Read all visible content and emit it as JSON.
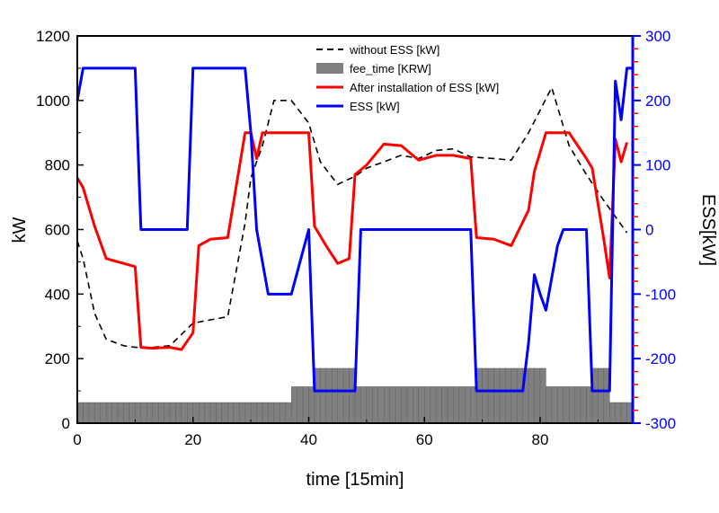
{
  "chart_data": {
    "type": "line",
    "xlabel": "time [15min]",
    "ylabel": "kW",
    "y2label": "ESS[kW]",
    "xlim": [
      0,
      96
    ],
    "ylim": [
      0,
      1200
    ],
    "y2lim": [
      -300,
      300
    ],
    "x_ticks": [
      "0",
      "20",
      "40",
      "60",
      "80"
    ],
    "y_ticks": [
      "0",
      "200",
      "400",
      "600",
      "800",
      "1000",
      "1200"
    ],
    "y2_ticks": [
      "-300",
      "-200",
      "-100",
      "0",
      "100",
      "200",
      "300"
    ],
    "legend_position": "top-center",
    "legend": [
      {
        "label": "without ESS [kW]",
        "color": "#000000",
        "style": "dashed"
      },
      {
        "label": "fee_time [KRW]",
        "color": "#7f7f7f",
        "style": "bar"
      },
      {
        "label": "After installation of ESS [kW]",
        "color": "#ff0000",
        "style": "solid"
      },
      {
        "label": "ESS [kW]",
        "color": "#0000ff",
        "style": "solid"
      }
    ],
    "series": [
      {
        "name": "without ESS [kW]",
        "axis": "left",
        "color": "#000000",
        "x": [
          0,
          1,
          3,
          5,
          8,
          10,
          13,
          16,
          20,
          23,
          26,
          29,
          30,
          32,
          34,
          37,
          40,
          42,
          45,
          48,
          50,
          53,
          56,
          59,
          62,
          65,
          68,
          72,
          75,
          78,
          80,
          82,
          85,
          88,
          91,
          93,
          95
        ],
        "y": [
          565,
          510,
          340,
          260,
          240,
          235,
          235,
          240,
          310,
          320,
          330,
          620,
          760,
          860,
          1000,
          1000,
          930,
          810,
          740,
          765,
          790,
          810,
          830,
          820,
          845,
          850,
          825,
          820,
          815,
          900,
          970,
          1040,
          860,
          770,
          690,
          640,
          590
        ]
      },
      {
        "name": "After installation of ESS [kW]",
        "axis": "left",
        "color": "#ff0000",
        "x": [
          0,
          1,
          3,
          5,
          8,
          10,
          11,
          13,
          16,
          18,
          20,
          21,
          23,
          26,
          29,
          30,
          31,
          32,
          34,
          37,
          40,
          41,
          43,
          45,
          47,
          48,
          50,
          53,
          56,
          59,
          62,
          65,
          68,
          69,
          72,
          75,
          78,
          79,
          81,
          83,
          85,
          88,
          89,
          91,
          92,
          93,
          94,
          95
        ],
        "y": [
          760,
          730,
          610,
          510,
          495,
          485,
          235,
          232,
          235,
          228,
          280,
          550,
          570,
          575,
          900,
          900,
          820,
          900,
          900,
          900,
          900,
          610,
          550,
          495,
          510,
          770,
          800,
          865,
          860,
          815,
          830,
          830,
          820,
          575,
          570,
          550,
          660,
          780,
          900,
          900,
          900,
          820,
          790,
          570,
          450,
          880,
          810,
          870
        ]
      },
      {
        "name": "ESS [kW]",
        "axis": "right",
        "color": "#0000ff",
        "x": [
          0,
          1,
          3,
          7,
          10,
          11,
          15,
          19,
          20,
          25,
          29,
          30,
          31,
          33,
          35,
          37,
          40,
          41,
          45,
          48,
          49,
          55,
          60,
          68,
          69,
          73,
          77,
          78,
          79,
          80,
          81,
          83,
          84,
          88,
          89,
          91,
          92,
          93,
          93.5,
          94,
          95,
          96
        ],
        "y": [
          200,
          250,
          250,
          250,
          250,
          0,
          0,
          0,
          250,
          250,
          250,
          150,
          0,
          -100,
          -100,
          -100,
          0,
          -250,
          -250,
          -250,
          0,
          0,
          0,
          0,
          -250,
          -250,
          -250,
          -175,
          -70,
          -100,
          -125,
          -25,
          0,
          0,
          -250,
          -250,
          -250,
          230,
          200,
          170,
          250,
          250
        ]
      }
    ],
    "fee_time": {
      "name": "fee_time [KRW]",
      "axis": "left",
      "color": "#7f7f7f",
      "segments": [
        {
          "x0": 0,
          "x1": 37,
          "value": 64
        },
        {
          "x0": 37,
          "x1": 41,
          "value": 113
        },
        {
          "x0": 41,
          "x1": 48,
          "value": 170
        },
        {
          "x0": 48,
          "x1": 69,
          "value": 113
        },
        {
          "x0": 69,
          "x1": 81,
          "value": 170
        },
        {
          "x0": 81,
          "x1": 89,
          "value": 113
        },
        {
          "x0": 89,
          "x1": 92,
          "value": 170
        },
        {
          "x0": 92,
          "x1": 96,
          "value": 64
        }
      ]
    }
  }
}
